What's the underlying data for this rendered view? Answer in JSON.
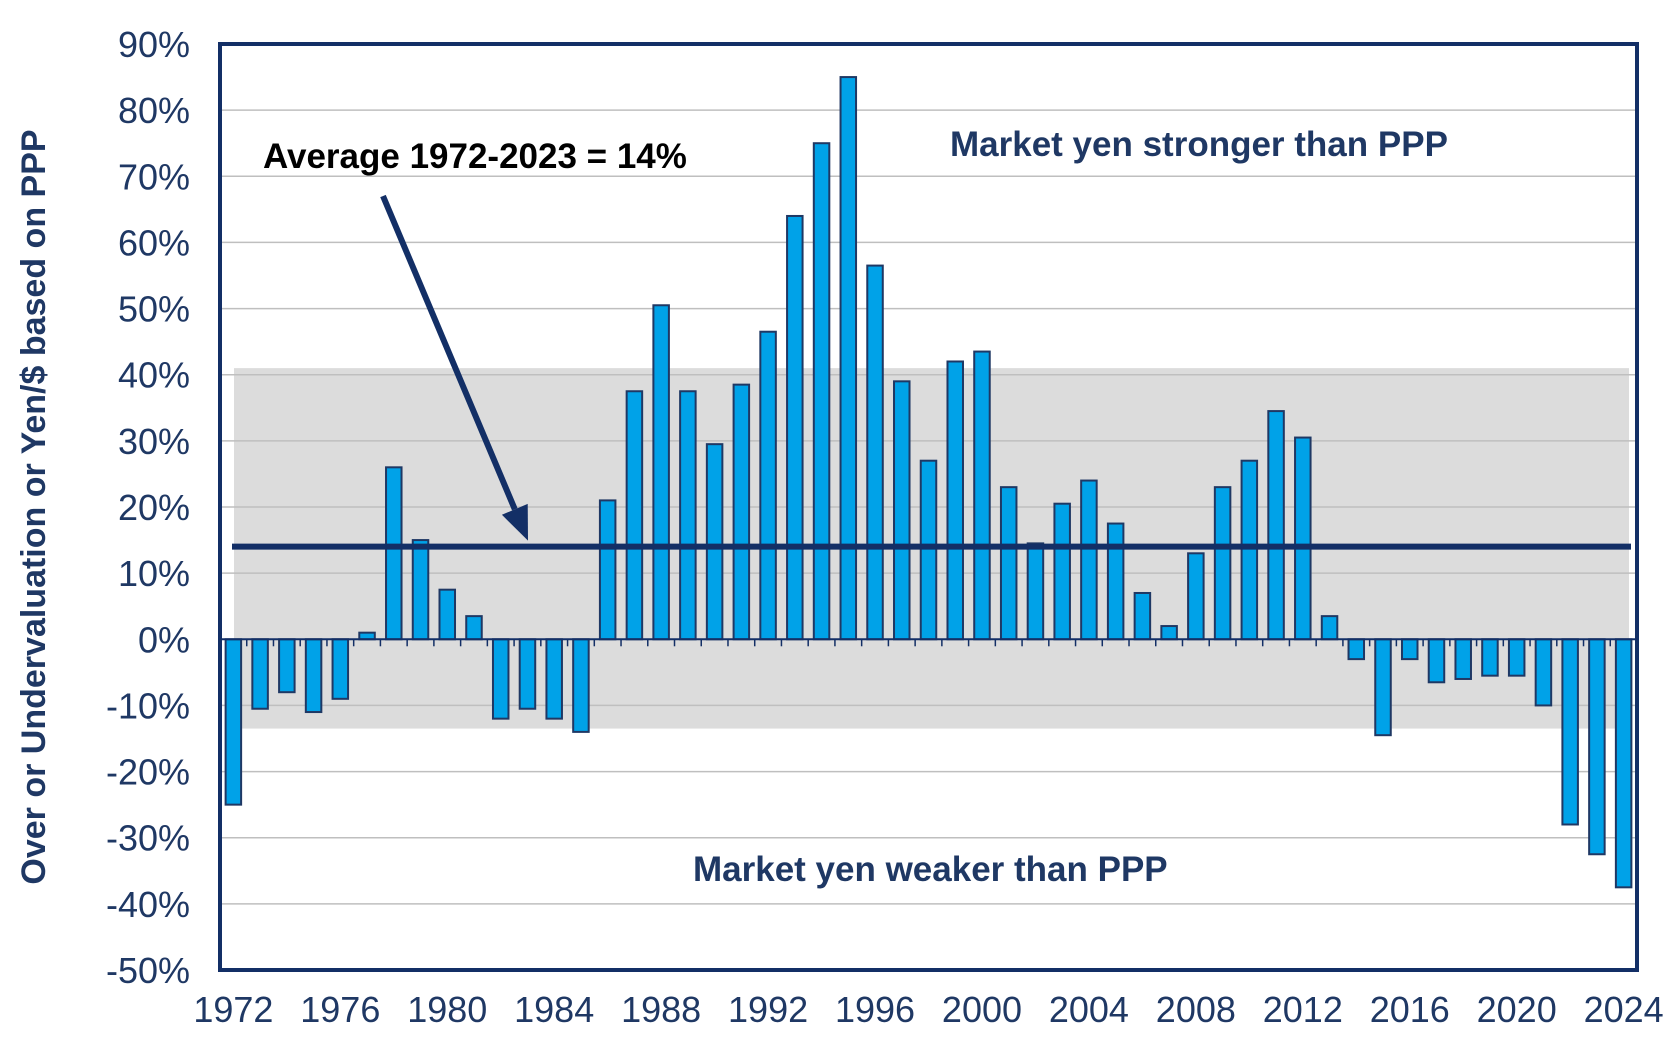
{
  "chart_data": {
    "type": "bar",
    "ylabel": "Over or Undervaluation or Yen/$ based on PPP",
    "xlabel": "",
    "ylim": [
      -50,
      90
    ],
    "y_ticks": [
      "90%",
      "80%",
      "70%",
      "60%",
      "50%",
      "40%",
      "30%",
      "20%",
      "10%",
      "0%",
      "-10%",
      "-20%",
      "-30%",
      "-40%",
      "-50%"
    ],
    "y_tick_values": [
      90,
      80,
      70,
      60,
      50,
      40,
      30,
      20,
      10,
      0,
      -10,
      -20,
      -30,
      -40,
      -50
    ],
    "x_tick_labels": [
      "1972",
      "1976",
      "1980",
      "1984",
      "1988",
      "1992",
      "1996",
      "2000",
      "2004",
      "2008",
      "2012",
      "2016",
      "2020",
      "2024"
    ],
    "categories": [
      1972,
      1973,
      1974,
      1975,
      1976,
      1977,
      1978,
      1979,
      1980,
      1981,
      1982,
      1983,
      1984,
      1985,
      1986,
      1987,
      1988,
      1989,
      1990,
      1991,
      1992,
      1993,
      1994,
      1995,
      1996,
      1997,
      1998,
      1999,
      2000,
      2001,
      2002,
      2003,
      2004,
      2005,
      2006,
      2007,
      2008,
      2009,
      2010,
      2011,
      2012,
      2013,
      2014,
      2015,
      2016,
      2017,
      2018,
      2019,
      2020,
      2021,
      2022,
      2023,
      2024
    ],
    "values": [
      -25,
      -10.5,
      -8,
      -11,
      -9,
      1,
      26,
      15,
      7.5,
      3.5,
      -12,
      -10.5,
      -12,
      -14,
      21,
      37.5,
      50.5,
      37.5,
      29.5,
      38.5,
      46.5,
      64,
      75,
      85,
      56.5,
      39,
      27,
      42,
      43.5,
      23,
      14.5,
      20.5,
      24,
      17.5,
      7,
      2,
      13,
      23,
      27,
      34.5,
      30.5,
      3.5,
      -3,
      -14.5,
      -3,
      -6.5,
      -6,
      -5.5,
      -5.5,
      -10,
      -28,
      -32.5,
      -37.5
    ],
    "band": {
      "low": -13.5,
      "high": 41
    },
    "average": {
      "value": 14,
      "label": "Average 1972-2023 = 14%"
    },
    "annotations": {
      "upper": "Market yen stronger than PPP",
      "lower": "Market yen weaker than PPP"
    },
    "colors": {
      "bar_fill": "#00a2e8",
      "bar_stroke": "#1f3864",
      "band": "#dcdcdc",
      "average_line": "#132f66",
      "axis": "#132f66",
      "text": "#1f3864",
      "grid": "#bfbfbf"
    },
    "grid": true,
    "legend": "none"
  }
}
